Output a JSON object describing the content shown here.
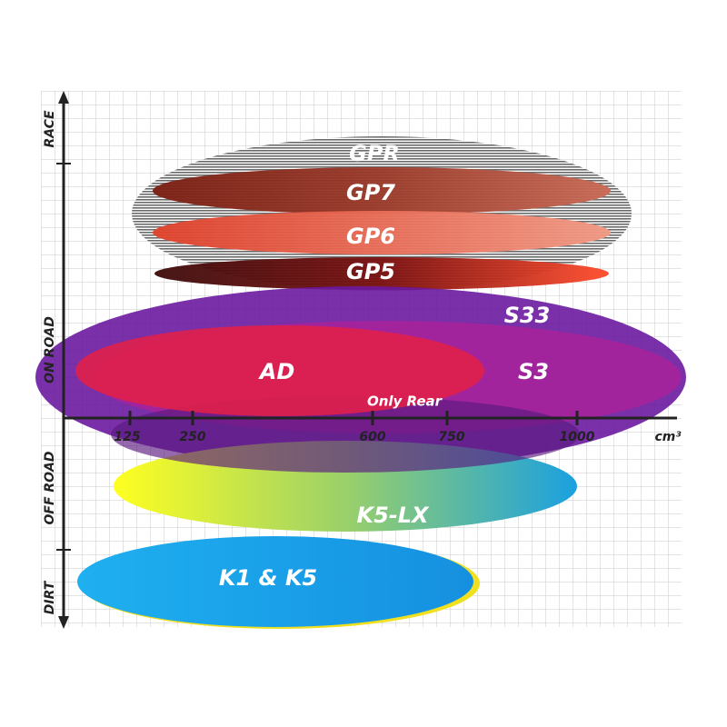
{
  "axes": {
    "y_labels": [
      "RACE",
      "ON ROAD",
      "OFF ROAD",
      "DIRT"
    ],
    "x_ticks": [
      "125",
      "250",
      "600",
      "750",
      "1000"
    ],
    "x_unit": "cm³"
  },
  "regions": [
    {
      "label": "GPR"
    },
    {
      "label": "GP7"
    },
    {
      "label": "GP6"
    },
    {
      "label": "GP5"
    },
    {
      "label": "S33"
    },
    {
      "label": "AD"
    },
    {
      "label": "S3"
    },
    {
      "label": "Only Rear"
    },
    {
      "label": "K5-LX"
    },
    {
      "label": "K1 & K5"
    }
  ]
}
